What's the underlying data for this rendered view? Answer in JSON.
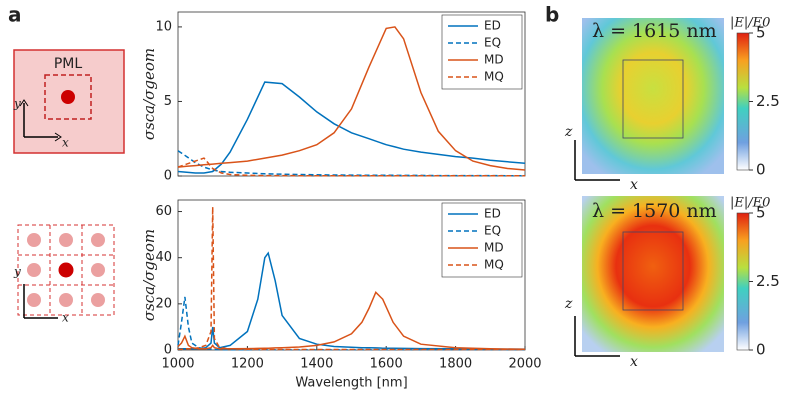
{
  "panel_labels": [
    "a",
    "b"
  ],
  "schematic": {
    "pml_label": "PML",
    "top_axes": [
      "y",
      "x"
    ],
    "bottom_axes": [
      "y",
      "x"
    ]
  },
  "chart_data": [
    {
      "type": "line",
      "ylabel": "σsca/σgeom",
      "xlim": [
        1000,
        2000
      ],
      "ylim": [
        0,
        11
      ],
      "yticks": [
        0,
        5,
        10
      ],
      "legend": "upper right",
      "x": [
        1000,
        1025,
        1050,
        1075,
        1100,
        1125,
        1150,
        1200,
        1250,
        1300,
        1350,
        1400,
        1450,
        1500,
        1550,
        1600,
        1625,
        1650,
        1700,
        1750,
        1800,
        1850,
        1900,
        1950,
        2000
      ],
      "series": [
        {
          "name": "ED",
          "color": "#0072bd",
          "dashed": false,
          "values": [
            0.3,
            0.25,
            0.2,
            0.2,
            0.3,
            0.8,
            1.6,
            3.8,
            6.3,
            6.2,
            5.3,
            4.3,
            3.5,
            2.9,
            2.5,
            2.1,
            1.95,
            1.8,
            1.6,
            1.45,
            1.3,
            1.2,
            1.05,
            0.95,
            0.85
          ]
        },
        {
          "name": "EQ",
          "color": "#0072bd",
          "dashed": true,
          "values": [
            1.7,
            1.3,
            0.9,
            0.6,
            0.4,
            0.3,
            0.25,
            0.2,
            0.15,
            0.12,
            0.1,
            0.08,
            0.07,
            0.06,
            0.05,
            0.05,
            0.05,
            0.04,
            0.04,
            0.03,
            0.03,
            0.03,
            0.03,
            0.02,
            0.02
          ]
        },
        {
          "name": "MD",
          "color": "#d95319",
          "dashed": false,
          "values": [
            0.6,
            0.65,
            0.7,
            0.75,
            0.8,
            0.85,
            0.9,
            1.0,
            1.2,
            1.4,
            1.7,
            2.1,
            2.9,
            4.5,
            7.3,
            9.9,
            10.0,
            9.2,
            5.6,
            3.0,
            1.7,
            1.0,
            0.7,
            0.5,
            0.4
          ]
        },
        {
          "name": "MQ",
          "color": "#d95319",
          "dashed": true,
          "values": [
            0.6,
            0.8,
            1.0,
            1.2,
            0.5,
            0.2,
            0.1,
            0.05,
            0.03,
            0.03,
            0.02,
            0.02,
            0.02,
            0.02,
            0.02,
            0.02,
            0.02,
            0.02,
            0.02,
            0.02,
            0.02,
            0.02,
            0.02,
            0.02,
            0.02
          ]
        }
      ]
    },
    {
      "type": "line",
      "ylabel": "σsca/σgeom",
      "xlabel": "Wavelength [nm]",
      "xlim": [
        1000,
        2000
      ],
      "xticks": [
        1000,
        1200,
        1400,
        1600,
        1800,
        2000
      ],
      "ylim": [
        0,
        65
      ],
      "yticks": [
        0,
        20,
        40,
        60
      ],
      "legend": "upper right",
      "x": [
        1000,
        1010,
        1020,
        1030,
        1040,
        1060,
        1080,
        1095,
        1100,
        1105,
        1120,
        1150,
        1200,
        1230,
        1250,
        1260,
        1280,
        1300,
        1350,
        1400,
        1450,
        1500,
        1530,
        1550,
        1570,
        1590,
        1620,
        1650,
        1700,
        1800,
        1900,
        2000
      ],
      "series": [
        {
          "name": "ED",
          "color": "#0072bd",
          "dashed": false,
          "values": [
            0.5,
            0.5,
            0.5,
            0.5,
            0.5,
            0.5,
            1,
            3,
            10,
            3,
            1,
            2,
            8,
            22,
            40,
            42,
            30,
            15,
            5,
            2.5,
            1.5,
            1.2,
            1,
            1,
            0.9,
            0.8,
            0.8,
            0.7,
            0.6,
            0.5,
            0.4,
            0.4
          ]
        },
        {
          "name": "EQ",
          "color": "#0072bd",
          "dashed": true,
          "values": [
            2,
            12,
            23,
            10,
            3,
            1,
            0.5,
            0.3,
            0.3,
            0.2,
            0.2,
            0.1,
            0.1,
            0.1,
            0.1,
            0.1,
            0.1,
            0.1,
            0.1,
            0.1,
            0.1,
            0.1,
            0.1,
            0.1,
            0.1,
            0.1,
            0.1,
            0.1,
            0.1,
            0.1,
            0.1,
            0.1
          ]
        },
        {
          "name": "MD",
          "color": "#d95319",
          "dashed": false,
          "values": [
            1.5,
            3,
            6,
            2,
            1,
            0.5,
            0.5,
            1,
            2,
            1,
            0.5,
            0.5,
            0.6,
            0.7,
            0.8,
            0.8,
            0.9,
            1,
            1.3,
            2,
            3.5,
            7,
            12,
            18,
            25,
            22,
            12,
            6,
            2.5,
            1,
            0.5,
            0.3
          ]
        },
        {
          "name": "MQ",
          "color": "#d95319",
          "dashed": true,
          "values": [
            0.3,
            0.3,
            0.5,
            0.5,
            0.5,
            1,
            2,
            8,
            62,
            5,
            1,
            0.5,
            0.3,
            0.2,
            0.2,
            0.2,
            0.2,
            0.2,
            0.2,
            0.2,
            0.2,
            0.2,
            0.2,
            0.2,
            0.2,
            0.2,
            0.2,
            0.2,
            0.2,
            0.2,
            0.2,
            0.2
          ]
        }
      ]
    }
  ],
  "field_maps": [
    {
      "title": "λ = 1615 nm",
      "colorbar_label": "|E|/E0",
      "clim": [
        0,
        5
      ],
      "cticks": [
        0,
        2.5,
        5
      ],
      "axes": [
        "z",
        "x"
      ]
    },
    {
      "title": "λ = 1570 nm",
      "colorbar_label": "|E|/E0",
      "clim": [
        0,
        5
      ],
      "cticks": [
        0,
        2.5,
        5
      ],
      "axes": [
        "z",
        "x"
      ]
    }
  ]
}
